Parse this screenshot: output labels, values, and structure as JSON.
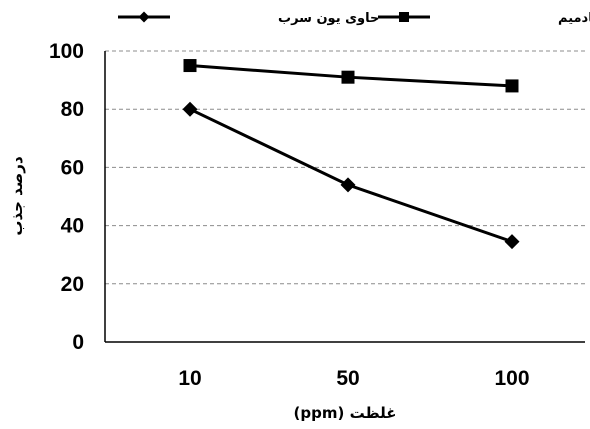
{
  "chart_data": {
    "type": "line",
    "title": "",
    "categories": [
      "10",
      "50",
      "100"
    ],
    "xlabel": "غلظت (ppm)",
    "ylabel": "درصد جذب",
    "ylim": [
      0,
      100
    ],
    "yticks": [
      0,
      20,
      40,
      60,
      80,
      100
    ],
    "grid": true,
    "legend_position": "top",
    "series": [
      {
        "name": "حاوی یون سرب",
        "marker": "diamond",
        "color": "#000000",
        "values": [
          80,
          54,
          34.5
        ]
      },
      {
        "name": "حاوی یون های سرب وکادمیم",
        "marker": "square",
        "color": "#000000",
        "values": [
          95,
          91,
          88
        ]
      }
    ]
  },
  "colors": {
    "grid": "#8c8c8c",
    "axis": "#000000",
    "line": "#000000"
  }
}
